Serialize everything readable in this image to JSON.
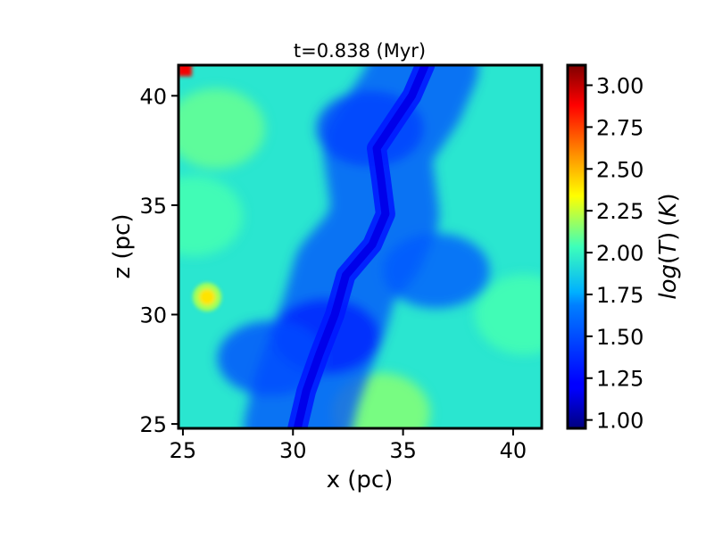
{
  "chart_data": {
    "type": "heatmap",
    "title": "t=0.838 (Myr)",
    "xlabel": "x (pc)",
    "ylabel": "z (pc)",
    "xlim": [
      24.8,
      41.3
    ],
    "ylim": [
      24.8,
      41.4
    ],
    "xticks": [
      25,
      30,
      35,
      40
    ],
    "xtick_labels": [
      "25",
      "30",
      "35",
      "40"
    ],
    "yticks": [
      25,
      30,
      35,
      40
    ],
    "ytick_labels": [
      "25",
      "30",
      "35",
      "40"
    ],
    "colormap": "jet",
    "colorbar": {
      "label": "log(T) (K)",
      "label_parts": {
        "a": "log",
        "b": "(",
        "c": "T",
        "d": ")",
        "e": "(",
        "f": "K",
        "g": ")"
      },
      "range": [
        0.95,
        3.12
      ],
      "ticks": [
        1.0,
        1.25,
        1.5,
        1.75,
        2.0,
        2.25,
        2.5,
        2.75,
        3.0
      ],
      "tick_labels": [
        "1.00",
        "1.25",
        "1.50",
        "1.75",
        "2.00",
        "2.25",
        "2.50",
        "2.75",
        "3.00"
      ]
    },
    "grid": false,
    "field_description": {
      "background_level": 1.95,
      "cold_filament_level": 1.15,
      "hot_spot": {
        "x": 26.1,
        "z": 30.8,
        "level": 2.4
      },
      "warm_corner": {
        "x": 25.0,
        "z": 41.3,
        "level": 2.9
      }
    },
    "filament_path": [
      [
        30.2,
        24.8
      ],
      [
        30.6,
        26.5
      ],
      [
        31.2,
        28.2
      ],
      [
        31.9,
        30.0
      ],
      [
        32.4,
        31.8
      ],
      [
        33.6,
        33.2
      ],
      [
        34.2,
        34.6
      ],
      [
        34.0,
        36.2
      ],
      [
        33.8,
        37.6
      ],
      [
        34.6,
        38.8
      ],
      [
        35.4,
        40.0
      ],
      [
        36.0,
        41.4
      ]
    ],
    "cold_regions": [
      {
        "x": 31.5,
        "z": 29.0,
        "level": 1.35
      },
      {
        "x": 33.5,
        "z": 38.5,
        "level": 1.45
      },
      {
        "x": 36.5,
        "z": 32.0,
        "level": 1.55
      },
      {
        "x": 29.0,
        "z": 28.0,
        "level": 1.5
      }
    ],
    "warm_regions": [
      {
        "x": 34.0,
        "z": 25.5,
        "level": 2.15
      },
      {
        "x": 26.5,
        "z": 38.5,
        "level": 2.1
      },
      {
        "x": 40.5,
        "z": 30.0,
        "level": 2.05
      },
      {
        "x": 25.5,
        "z": 34.5,
        "level": 2.05
      }
    ]
  }
}
